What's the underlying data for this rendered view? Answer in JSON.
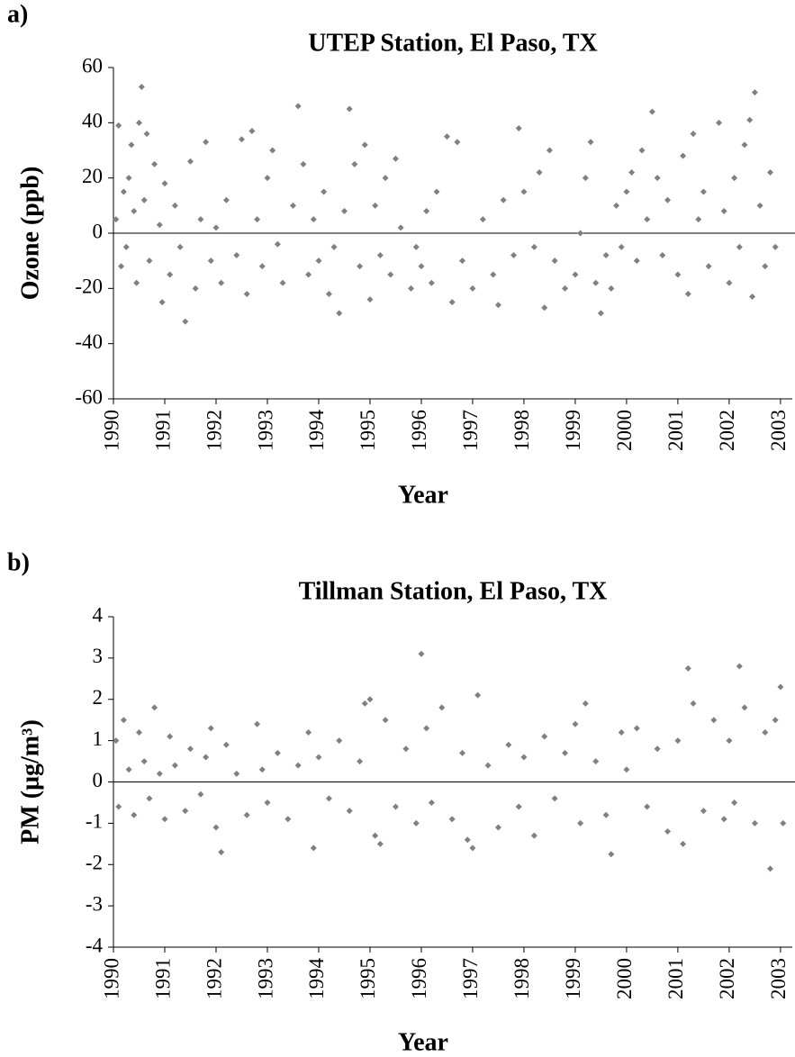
{
  "chart_data": [
    {
      "type": "scatter",
      "panel_label": "a)",
      "title": "UTEP Station, El Paso, TX",
      "x_label": "Year",
      "y_label": "Ozone (ppb)",
      "color": "#808080",
      "xlim": [
        1990,
        2003.23
      ],
      "ylim": [
        -60,
        60
      ],
      "xticks": [
        1990,
        1991,
        1992,
        1993,
        1994,
        1995,
        1996,
        1997,
        1998,
        1999,
        2000,
        2001,
        2002,
        2003
      ],
      "yticks": [
        -60,
        -40,
        -20,
        0,
        20,
        40,
        60
      ],
      "x": [
        1990.05,
        1990.1,
        1990.15,
        1990.2,
        1990.25,
        1990.3,
        1990.35,
        1990.4,
        1990.45,
        1990.5,
        1990.55,
        1990.6,
        1990.65,
        1990.7,
        1990.8,
        1990.9,
        1990.95,
        1991.0,
        1991.1,
        1991.2,
        1991.3,
        1991.4,
        1991.5,
        1991.6,
        1991.7,
        1991.8,
        1991.9,
        1992.0,
        1992.1,
        1992.2,
        1992.4,
        1992.5,
        1992.6,
        1992.7,
        1992.8,
        1992.9,
        1993.0,
        1993.1,
        1993.2,
        1993.3,
        1993.5,
        1993.6,
        1993.7,
        1993.8,
        1993.9,
        1994.0,
        1994.1,
        1994.2,
        1994.3,
        1994.4,
        1994.5,
        1994.6,
        1994.7,
        1994.8,
        1994.9,
        1995.0,
        1995.1,
        1995.2,
        1995.3,
        1995.4,
        1995.5,
        1995.6,
        1995.8,
        1995.9,
        1996.0,
        1996.1,
        1996.2,
        1996.3,
        1996.5,
        1996.6,
        1996.7,
        1996.8,
        1997.0,
        1997.2,
        1997.4,
        1997.5,
        1997.6,
        1997.8,
        1997.9,
        1998.0,
        1998.2,
        1998.3,
        1998.4,
        1998.5,
        1998.6,
        1998.8,
        1999.0,
        1999.1,
        1999.2,
        1999.3,
        1999.4,
        1999.5,
        1999.6,
        1999.7,
        1999.8,
        1999.9,
        2000.0,
        2000.1,
        2000.2,
        2000.3,
        2000.4,
        2000.5,
        2000.6,
        2000.7,
        2000.8,
        2001.0,
        2001.1,
        2001.2,
        2001.3,
        2001.4,
        2001.5,
        2001.6,
        2001.8,
        2001.9,
        2002.0,
        2002.1,
        2002.2,
        2002.3,
        2002.4,
        2002.45,
        2002.5,
        2002.6,
        2002.7,
        2002.8,
        2002.9
      ],
      "y": [
        5,
        39,
        -12,
        15,
        -5,
        20,
        32,
        8,
        -18,
        40,
        53,
        12,
        36,
        -10,
        25,
        3,
        -25,
        18,
        -15,
        10,
        -5,
        -32,
        26,
        -20,
        5,
        33,
        -10,
        2,
        -18,
        12,
        -8,
        34,
        -22,
        37,
        5,
        -12,
        20,
        30,
        -4,
        -18,
        10,
        46,
        25,
        -15,
        5,
        -10,
        15,
        -22,
        -5,
        -29,
        8,
        45,
        25,
        -12,
        32,
        -24,
        10,
        -8,
        20,
        -15,
        27,
        2,
        -20,
        -5,
        -12,
        8,
        -18,
        15,
        35,
        -25,
        33,
        -10,
        -20,
        5,
        -15,
        -26,
        12,
        -8,
        38,
        15,
        -5,
        22,
        -27,
        30,
        -10,
        -20,
        -15,
        0,
        20,
        33,
        -18,
        -29,
        -8,
        -20,
        10,
        -5,
        15,
        22,
        -10,
        30,
        5,
        44,
        20,
        -8,
        12,
        -15,
        28,
        -22,
        36,
        5,
        15,
        -12,
        40,
        8,
        -18,
        20,
        -5,
        32,
        41,
        -23,
        51,
        10,
        -12,
        22,
        -5
      ]
    },
    {
      "type": "scatter",
      "panel_label": "b)",
      "title": "Tillman Station, El Paso, TX",
      "x_label": "Year",
      "y_label": "PM (μg/m³)",
      "color": "#808080",
      "xlim": [
        1990,
        2003.23
      ],
      "ylim": [
        -4,
        4
      ],
      "xticks": [
        1990,
        1991,
        1992,
        1993,
        1994,
        1995,
        1996,
        1997,
        1998,
        1999,
        2000,
        2001,
        2002,
        2003
      ],
      "yticks": [
        -4,
        -3,
        -2,
        -1,
        0,
        1,
        2,
        3,
        4
      ],
      "x": [
        1990.05,
        1990.1,
        1990.2,
        1990.3,
        1990.4,
        1990.5,
        1990.6,
        1990.7,
        1990.8,
        1990.9,
        1991.0,
        1991.1,
        1991.2,
        1991.4,
        1991.5,
        1991.7,
        1991.8,
        1991.9,
        1992.0,
        1992.1,
        1992.2,
        1992.4,
        1992.6,
        1992.8,
        1992.9,
        1993.0,
        1993.2,
        1993.4,
        1993.6,
        1993.8,
        1993.9,
        1994.0,
        1994.2,
        1994.4,
        1994.6,
        1994.8,
        1994.9,
        1995.0,
        1995.1,
        1995.2,
        1995.3,
        1995.5,
        1995.7,
        1995.9,
        1996.0,
        1996.1,
        1996.2,
        1996.4,
        1996.6,
        1996.8,
        1996.9,
        1997.0,
        1997.1,
        1997.3,
        1997.5,
        1997.7,
        1997.9,
        1998.0,
        1998.2,
        1998.4,
        1998.6,
        1998.8,
        1999.0,
        1999.1,
        1999.2,
        1999.4,
        1999.6,
        1999.7,
        1999.9,
        2000.0,
        2000.2,
        2000.4,
        2000.6,
        2000.8,
        2001.0,
        2001.1,
        2001.2,
        2001.3,
        2001.5,
        2001.7,
        2001.9,
        2002.0,
        2002.1,
        2002.2,
        2002.3,
        2002.5,
        2002.7,
        2002.8,
        2002.9,
        2003.0,
        2003.05
      ],
      "y": [
        1.0,
        -0.6,
        1.5,
        0.3,
        -0.8,
        1.2,
        0.5,
        -0.4,
        1.8,
        0.2,
        -0.9,
        1.1,
        0.4,
        -0.7,
        0.8,
        -0.3,
        0.6,
        1.3,
        -1.1,
        -1.7,
        0.9,
        0.2,
        -0.8,
        1.4,
        0.3,
        -0.5,
        0.7,
        -0.9,
        0.4,
        1.2,
        -1.6,
        0.6,
        -0.4,
        1.0,
        -0.7,
        0.5,
        1.9,
        2.0,
        -1.3,
        -1.5,
        1.5,
        -0.6,
        0.8,
        -1.0,
        3.1,
        1.3,
        -0.5,
        1.8,
        -0.9,
        0.7,
        -1.4,
        -1.6,
        2.1,
        0.4,
        -1.1,
        0.9,
        -0.6,
        0.6,
        -1.3,
        1.1,
        -0.4,
        0.7,
        1.4,
        -1.0,
        1.9,
        0.5,
        -0.8,
        -1.75,
        1.2,
        0.3,
        1.3,
        -0.6,
        0.8,
        -1.2,
        1.0,
        -1.5,
        2.75,
        1.9,
        -0.7,
        1.5,
        -0.9,
        1.0,
        -0.5,
        2.8,
        1.8,
        -1.0,
        1.2,
        -2.1,
        1.5,
        2.3,
        -1.0
      ]
    }
  ]
}
